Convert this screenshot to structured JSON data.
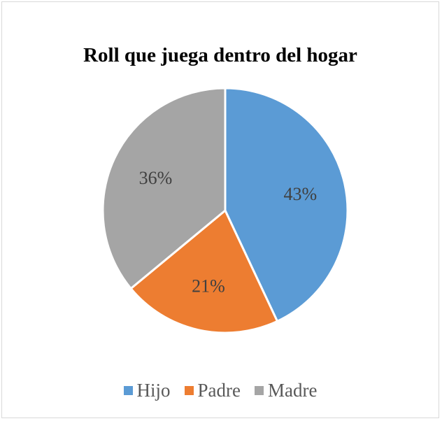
{
  "chart_data": {
    "type": "pie",
    "title": "Roll que juega dentro del hogar",
    "slices": [
      {
        "label": "Hijo",
        "value": 43,
        "value_label": "43%",
        "color": "#5b9bd5"
      },
      {
        "label": "Padre",
        "value": 21,
        "value_label": "21%",
        "color": "#ed7d31"
      },
      {
        "label": "Madre",
        "value": 36,
        "value_label": "36%",
        "color": "#a5a5a5"
      }
    ],
    "legend_position": "bottom"
  }
}
